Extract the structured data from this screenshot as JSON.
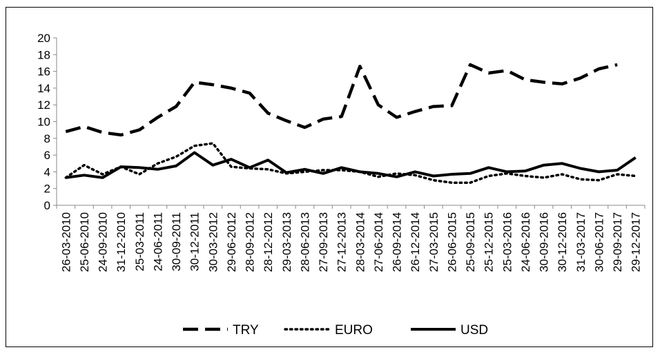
{
  "chart_data": {
    "type": "line",
    "x": [
      "26-03-2010",
      "25-06-2010",
      "24-09-2010",
      "31-12-2010",
      "25-03-2011",
      "24-06-2011",
      "30-09-2011",
      "30-12-2011",
      "30-03-2012",
      "29-06-2012",
      "28-09-2012",
      "28-12-2012",
      "29-03-2013",
      "28-06-2013",
      "27-09-2013",
      "27-12-2013",
      "28-03-2014",
      "27-06-2014",
      "26-09-2014",
      "26-12-2014",
      "27-03-2015",
      "26-06-2015",
      "25-09-2015",
      "25-12-2015",
      "25-03-2016",
      "24-06-2016",
      "30-09-2016",
      "30-12-2016",
      "31-03-2017",
      "30-06-2017",
      "29-09-2017",
      "29-12-2017"
    ],
    "ylim": [
      0,
      20
    ],
    "yticks": [
      0,
      2,
      4,
      6,
      8,
      10,
      12,
      14,
      16,
      18,
      20
    ],
    "grid": false,
    "legend_position": "bottom",
    "series": [
      {
        "name": "TRY",
        "style": "dashed",
        "color": "#000000",
        "values": [
          8.8,
          9.4,
          8.7,
          8.4,
          9.0,
          10.5,
          11.8,
          14.7,
          14.4,
          14.0,
          13.4,
          11.0,
          10.1,
          9.3,
          10.3,
          10.6,
          16.6,
          12.0,
          10.5,
          11.2,
          11.8,
          11.9,
          16.8,
          15.8,
          16.1,
          15.0,
          14.7,
          14.5,
          15.2,
          16.3,
          16.8,
          null
        ]
      },
      {
        "name": "EURO",
        "style": "dotted",
        "color": "#000000",
        "values": [
          3.3,
          4.8,
          3.7,
          4.6,
          3.7,
          5.0,
          5.8,
          7.1,
          7.4,
          4.6,
          4.4,
          4.3,
          3.8,
          4.0,
          4.2,
          4.2,
          4.0,
          3.4,
          3.8,
          3.6,
          3.0,
          2.7,
          2.7,
          3.5,
          3.8,
          3.5,
          3.3,
          3.7,
          3.1,
          3.0,
          3.7,
          3.5
        ]
      },
      {
        "name": "USD",
        "style": "solid",
        "color": "#000000",
        "values": [
          3.3,
          3.6,
          3.3,
          4.6,
          4.5,
          4.3,
          4.7,
          6.3,
          4.8,
          5.5,
          4.5,
          5.4,
          3.9,
          4.3,
          3.8,
          4.5,
          4.0,
          3.8,
          3.4,
          4.0,
          3.5,
          3.7,
          3.8,
          4.5,
          4.0,
          4.1,
          4.8,
          5.0,
          4.4,
          4.0,
          4.2,
          5.7
        ]
      }
    ]
  }
}
